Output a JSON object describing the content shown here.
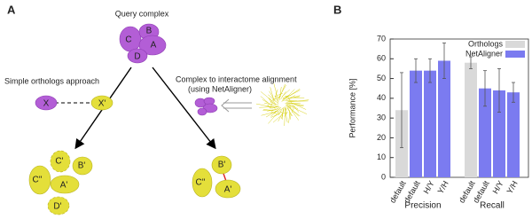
{
  "panel_a": {
    "label": "A",
    "query_title": "Query complex",
    "query_nodes": [
      "C",
      "B",
      "A",
      "D"
    ],
    "orthologs_title": "Simple orthologs approach",
    "orthologs_nodes": [
      "X",
      "X'"
    ],
    "alignment_title": "Complex to interactome alignment",
    "alignment_subtitle": "(using NetAligner)",
    "left_result": [
      "C'",
      "B'",
      "C''",
      "A'",
      "D'"
    ],
    "right_result": [
      "B'",
      "C''",
      "A'"
    ]
  },
  "chart_data": {
    "type": "bar",
    "panel_label": "B",
    "ylabel": "Performance [%]",
    "categories": [
      "default",
      "default",
      "H/Y",
      "Y/H",
      "default",
      "default",
      "H/Y",
      "Y/H"
    ],
    "groups": [
      "Precision",
      "Recall"
    ],
    "series": [
      {
        "name": "Orthologs",
        "color": "#d9d9d9",
        "values": [
          34,
          null,
          null,
          null,
          58,
          null,
          null,
          null
        ],
        "errors": [
          19,
          null,
          null,
          null,
          3,
          null,
          null,
          null
        ]
      },
      {
        "name": "NetAligner",
        "color": "#7b7bf0",
        "values": [
          null,
          54,
          54,
          59,
          null,
          45,
          44,
          43
        ],
        "errors": [
          null,
          6,
          6,
          9,
          null,
          9,
          11,
          5
        ]
      }
    ],
    "ylim": [
      0,
      70
    ],
    "yticks": [
      0,
      10,
      20,
      30,
      40,
      50,
      60,
      70
    ],
    "grid": false,
    "legend": "top-right"
  }
}
